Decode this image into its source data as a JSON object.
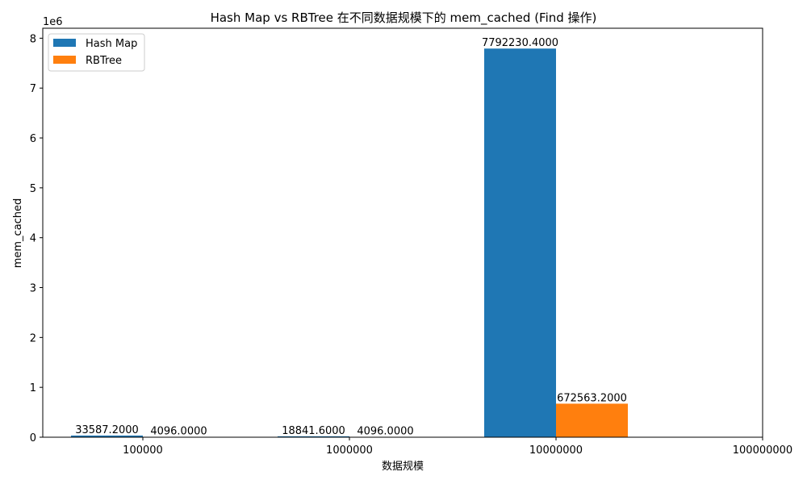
{
  "chart_data": {
    "type": "bar",
    "title": "Hash Map vs RBTree 在不同数据规模下的 mem_cached (Find 操作)",
    "xlabel": "数据规模",
    "ylabel": "mem_cached",
    "y_offset_label": "1e6",
    "categories": [
      "100000",
      "1000000",
      "10000000",
      "100000000"
    ],
    "series": [
      {
        "name": "Hash Map",
        "color": "#1f77b4",
        "values": [
          33587.2,
          18841.6,
          7792230.4,
          null
        ],
        "labels": [
          "33587.2000",
          "18841.6000",
          "7792230.4000",
          null
        ]
      },
      {
        "name": "RBTree",
        "color": "#ff7f0e",
        "values": [
          4096.0,
          4096.0,
          672563.2,
          null
        ],
        "labels": [
          "4096.0000",
          "4096.0000",
          "672563.2000",
          null
        ]
      }
    ],
    "ylim": [
      0,
      8200000
    ],
    "yticks": [
      0,
      1,
      2,
      3,
      4,
      5,
      6,
      7,
      8
    ],
    "ytick_scale": 1000000,
    "grid": false,
    "legend_position": "top-left"
  }
}
